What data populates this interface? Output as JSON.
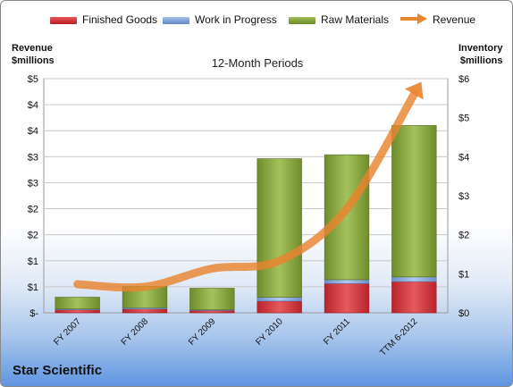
{
  "legend": {
    "finished_goods": "Finished Goods",
    "work_in_progress": "Work in Progress",
    "raw_materials": "Raw Materials",
    "revenue": "Revenue"
  },
  "axis_titles": {
    "left_line1": "Revenue",
    "left_line2": "$millions",
    "right_line1": "Inventory",
    "right_line2": "$millions"
  },
  "company": "Star Scientific",
  "colors": {
    "finished_goods": "#d42e33",
    "work_in_progress": "#7b9fd6",
    "raw_materials": "#7c9a36",
    "revenue": "#e9842f"
  },
  "chart_data": {
    "type": "bar",
    "stacked": true,
    "title": "12-Month Periods",
    "categories": [
      "FY 2007",
      "FY 2008",
      "FY 2009",
      "FY 2010",
      "FY 2011",
      "TTM 6-2012"
    ],
    "series": [
      {
        "name": "Finished Goods",
        "axis": "right",
        "values": [
          0.08,
          0.1,
          0.06,
          0.3,
          0.75,
          0.8
        ]
      },
      {
        "name": "Work in Progress",
        "axis": "right",
        "values": [
          0.02,
          0.03,
          0.02,
          0.1,
          0.1,
          0.12
        ]
      },
      {
        "name": "Raw Materials",
        "axis": "right",
        "values": [
          0.3,
          0.55,
          0.55,
          3.55,
          3.2,
          3.88
        ]
      },
      {
        "name": "Revenue",
        "type": "line",
        "axis": "left",
        "values": [
          0.55,
          0.5,
          0.85,
          1.0,
          2.0,
          4.2
        ]
      }
    ],
    "left_axis": {
      "title": "Revenue $millions",
      "ylim": [
        0,
        4.5
      ],
      "tick_labels": [
        "$-",
        "$1",
        "$1",
        "$2",
        "$2",
        "$3",
        "$3",
        "$4",
        "$4",
        "$5"
      ]
    },
    "right_axis": {
      "title": "Inventory $millions",
      "ylim": [
        0,
        6
      ],
      "tick_labels": [
        "$0",
        "$1",
        "$2",
        "$3",
        "$4",
        "$5",
        "$6"
      ]
    },
    "grid": true,
    "legend_position": "top"
  }
}
